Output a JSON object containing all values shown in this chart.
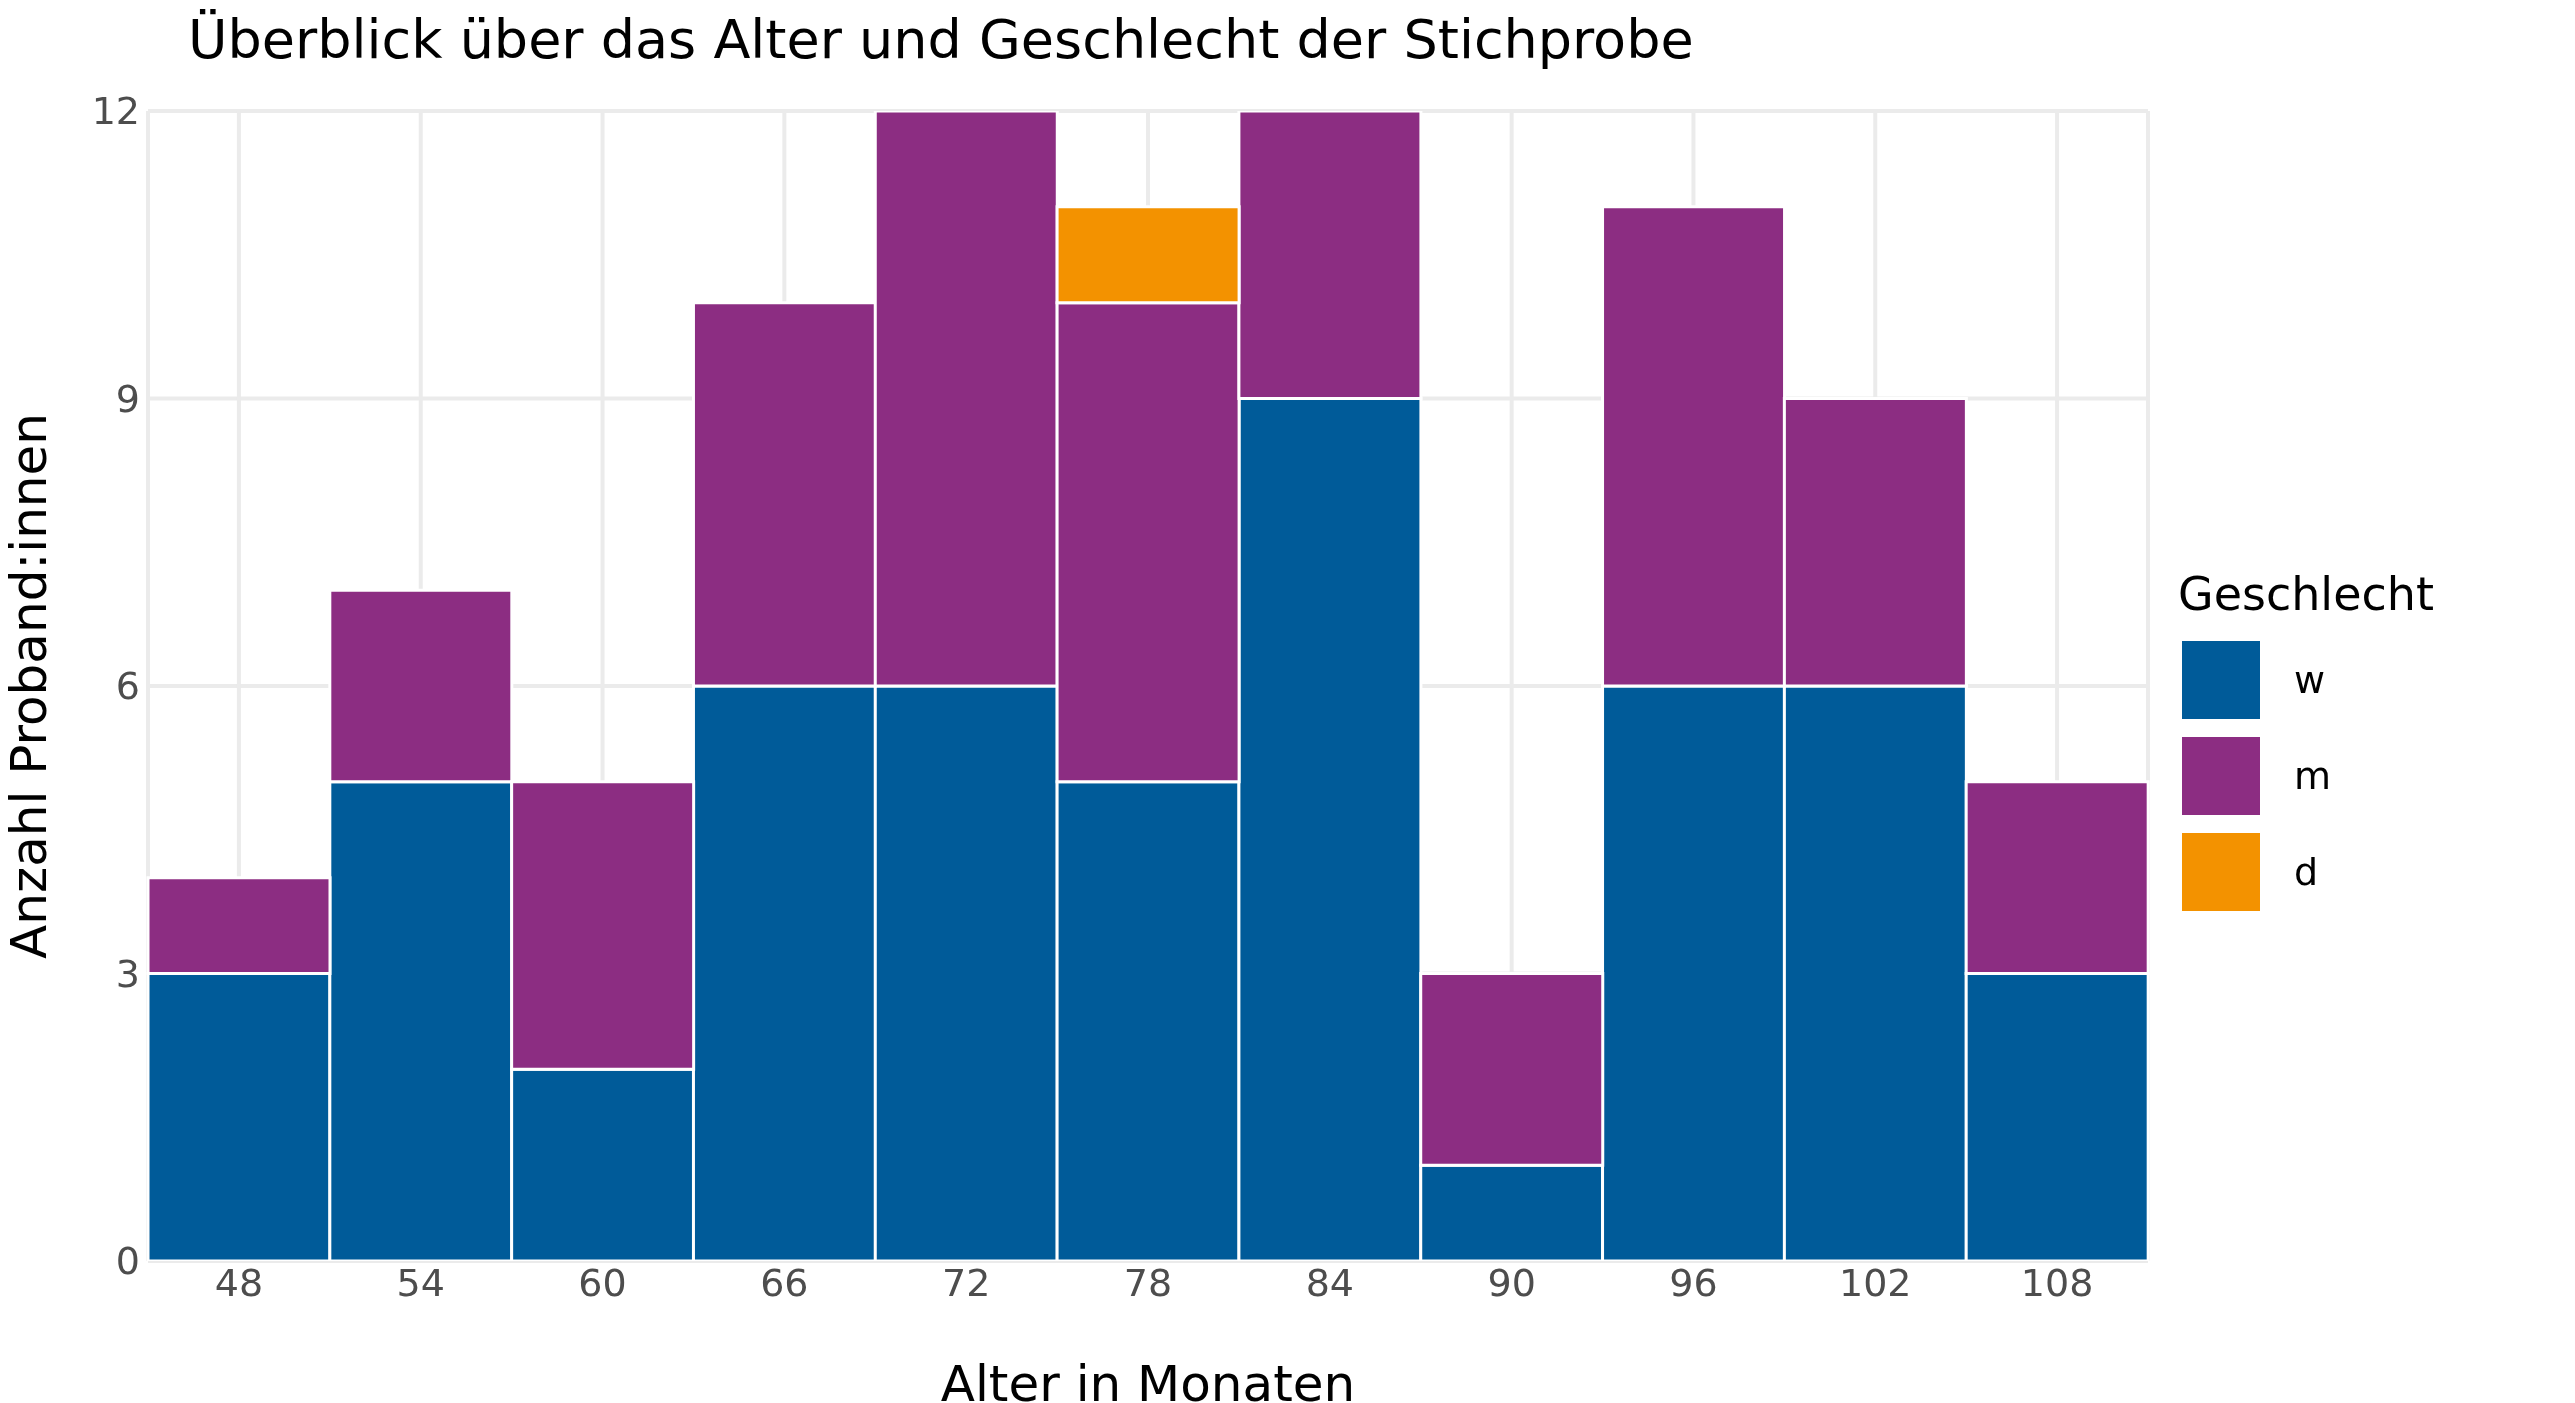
{
  "chart_data": {
    "type": "bar",
    "title": "Überblick über das Alter und Geschlecht der Stichprobe",
    "xlabel": "Alter in Monaten",
    "ylabel": "Anzahl Proband:innen",
    "legend_title": "Geschlecht",
    "categories": [
      "48",
      "54",
      "60",
      "66",
      "72",
      "78",
      "84",
      "90",
      "96",
      "102",
      "108"
    ],
    "stacked": true,
    "series": [
      {
        "name": "w",
        "color": "#005b99",
        "values": [
          3,
          5,
          2,
          6,
          6,
          5,
          9,
          1,
          6,
          6,
          3
        ]
      },
      {
        "name": "m",
        "color": "#8c2d82",
        "values": [
          1,
          2,
          3,
          4,
          6,
          5,
          3,
          2,
          5,
          3,
          2
        ]
      },
      {
        "name": "d",
        "color": "#f39200",
        "values": [
          null,
          null,
          null,
          null,
          null,
          1,
          null,
          null,
          null,
          null,
          null
        ]
      }
    ],
    "ylim": [
      0,
      12
    ],
    "yticks": [
      0,
      3,
      6,
      9,
      12
    ],
    "grid": true,
    "legend": "right"
  }
}
